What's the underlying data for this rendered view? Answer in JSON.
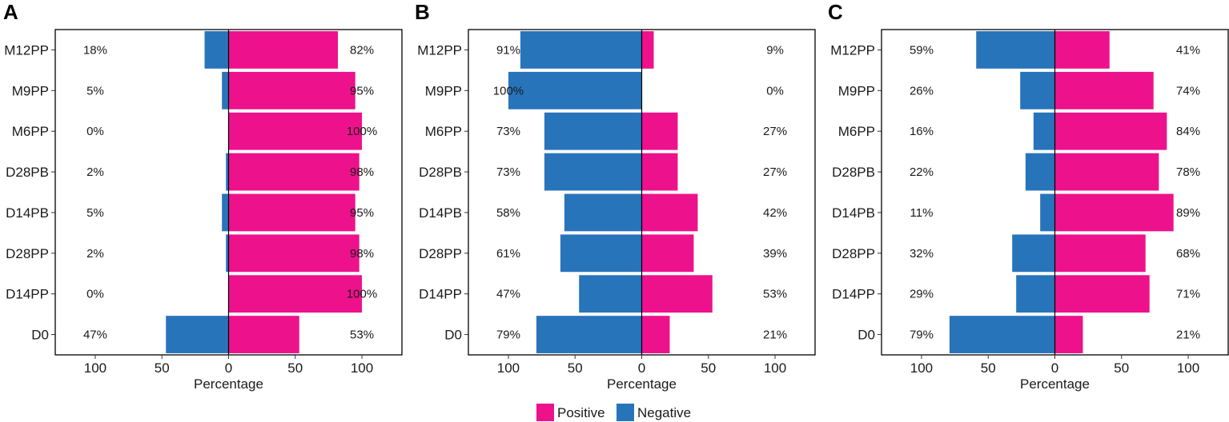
{
  "legend": {
    "items": [
      {
        "label": "Positive",
        "color": "#EE118C"
      },
      {
        "label": "Negative",
        "color": "#2874BB"
      }
    ]
  },
  "chart_data": [
    {
      "type": "bar",
      "orientation": "horizontal-diverging",
      "panel": "A",
      "xlabel": "Percentage",
      "xlim": [
        -130,
        130
      ],
      "xticks": [
        -100,
        -50,
        0,
        50,
        100
      ],
      "xtick_labels": [
        "100",
        "50",
        "0",
        "50",
        "100"
      ],
      "categories": [
        "M12PP",
        "M9PP",
        "M6PP",
        "D28PB",
        "D14PB",
        "D28PP",
        "D14PP",
        "D0"
      ],
      "series": [
        {
          "name": "Negative",
          "values": [
            18,
            5,
            0,
            2,
            5,
            2,
            0,
            47
          ],
          "labels": [
            "18%",
            "5%",
            "0%",
            "2%",
            "5%",
            "2%",
            "0%",
            "47%"
          ]
        },
        {
          "name": "Positive",
          "values": [
            82,
            95,
            100,
            98,
            95,
            98,
            100,
            53
          ],
          "labels": [
            "82%",
            "95%",
            "100%",
            "98%",
            "95%",
            "98%",
            "100%",
            "53%"
          ]
        }
      ]
    },
    {
      "type": "bar",
      "orientation": "horizontal-diverging",
      "panel": "B",
      "xlabel": "Percentage",
      "xlim": [
        -130,
        130
      ],
      "xticks": [
        -100,
        -50,
        0,
        50,
        100
      ],
      "xtick_labels": [
        "100",
        "50",
        "0",
        "50",
        "100"
      ],
      "categories": [
        "M12PP",
        "M9PP",
        "M6PP",
        "D28PB",
        "D14PB",
        "D28PP",
        "D14PP",
        "D0"
      ],
      "series": [
        {
          "name": "Negative",
          "values": [
            91,
            100,
            73,
            73,
            58,
            61,
            47,
            79
          ],
          "labels": [
            "91%",
            "100%",
            "73%",
            "73%",
            "58%",
            "61%",
            "47%",
            "79%"
          ]
        },
        {
          "name": "Positive",
          "values": [
            9,
            0,
            27,
            27,
            42,
            39,
            53,
            21
          ],
          "labels": [
            "9%",
            "0%",
            "27%",
            "27%",
            "42%",
            "39%",
            "53%",
            "21%"
          ]
        }
      ]
    },
    {
      "type": "bar",
      "orientation": "horizontal-diverging",
      "panel": "C",
      "xlabel": "Percentage",
      "xlim": [
        -130,
        130
      ],
      "xticks": [
        -100,
        -50,
        0,
        50,
        100
      ],
      "xtick_labels": [
        "100",
        "50",
        "0",
        "50",
        "100"
      ],
      "categories": [
        "M12PP",
        "M9PP",
        "M6PP",
        "D28PB",
        "D14PB",
        "D28PP",
        "D14PP",
        "D0"
      ],
      "series": [
        {
          "name": "Negative",
          "values": [
            59,
            26,
            16,
            22,
            11,
            32,
            29,
            79
          ],
          "labels": [
            "59%",
            "26%",
            "16%",
            "22%",
            "11%",
            "32%",
            "29%",
            "79%"
          ]
        },
        {
          "name": "Positive",
          "values": [
            41,
            74,
            84,
            78,
            89,
            68,
            71,
            21
          ],
          "labels": [
            "41%",
            "74%",
            "84%",
            "78%",
            "89%",
            "68%",
            "71%",
            "21%"
          ]
        }
      ]
    }
  ]
}
